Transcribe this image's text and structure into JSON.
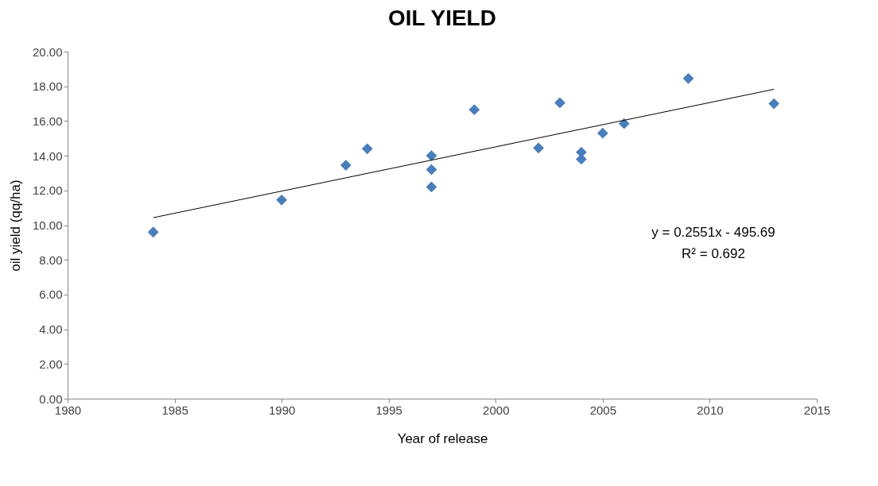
{
  "chart_data": {
    "type": "scatter",
    "title": "OIL YIELD",
    "xlabel": "Year of release",
    "ylabel": "oil yield (qq/ha)",
    "xlim": [
      1980,
      2015
    ],
    "xticks": [
      1980,
      1985,
      1990,
      1995,
      2000,
      2005,
      2010,
      2015
    ],
    "ylim": [
      0,
      20
    ],
    "yticks": [
      {
        "value": 0,
        "label": "0.00"
      },
      {
        "value": 2,
        "label": "2.00"
      },
      {
        "value": 4,
        "label": "4.00"
      },
      {
        "value": 6,
        "label": "6.00"
      },
      {
        "value": 8,
        "label": "8.00"
      },
      {
        "value": 10,
        "label": "10.00"
      },
      {
        "value": 12,
        "label": "12.00"
      },
      {
        "value": 14,
        "label": "14.00"
      },
      {
        "value": 16,
        "label": "16.00"
      },
      {
        "value": 18,
        "label": "18.00"
      },
      {
        "value": 20,
        "label": "20.00"
      }
    ],
    "legend": false,
    "grid": false,
    "series": [
      {
        "marker": "diamond",
        "color": "#4a7ebb",
        "x": [
          1984,
          1990,
          1993,
          1994,
          1997,
          1997,
          1997,
          1999,
          2002,
          2003,
          2004,
          2004,
          2005,
          2006,
          2009,
          2013
        ],
        "values": [
          9.6,
          11.45,
          13.45,
          14.4,
          14.0,
          13.2,
          12.2,
          16.65,
          14.45,
          17.05,
          14.2,
          13.8,
          15.3,
          15.85,
          18.45,
          17.0
        ]
      },
      {
        "type": "line",
        "marker": "none",
        "color": "#000000",
        "x": [
          1984,
          2013
        ],
        "values": [
          10.43,
          17.83
        ]
      }
    ],
    "annotations": [
      "y = 0.2551x - 495.69",
      "R² = 0.692"
    ]
  }
}
